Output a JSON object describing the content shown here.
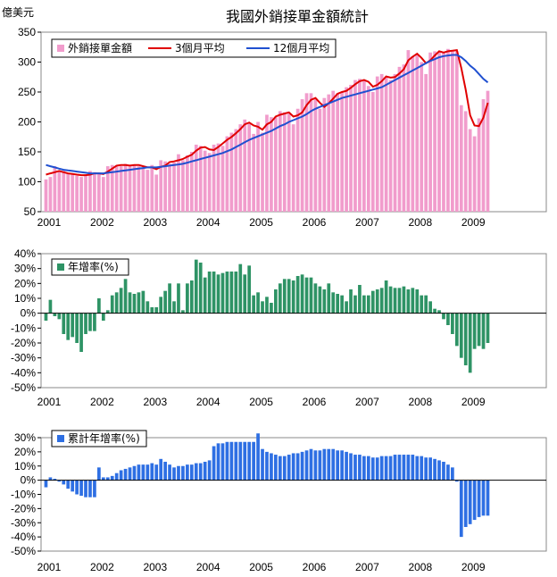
{
  "chart_data": [
    {
      "type": "bar",
      "title": "我國外銷接單金額統計",
      "ylabel": "億美元",
      "ylim": [
        50,
        350
      ],
      "yticks": [
        "50",
        "100",
        "150",
        "200",
        "250",
        "300",
        "350"
      ],
      "xticks": [
        "2001",
        "2002",
        "2003",
        "2004",
        "2005",
        "2006",
        "2007",
        "2008",
        "2009"
      ],
      "legend_position": "top-left",
      "grid": false,
      "series": [
        {
          "name": "外銷接單金額",
          "color": "#f19ccc",
          "type": "bar",
          "values": [
            104,
            108,
            126,
            118,
            118,
            114,
            112,
            110,
            108,
            112,
            118,
            116,
            113,
            108,
            126,
            128,
            128,
            126,
            130,
            126,
            128,
            126,
            124,
            120,
            128,
            112,
            136,
            134,
            130,
            132,
            146,
            136,
            144,
            150,
            162,
            160,
            152,
            148,
            162,
            164,
            160,
            176,
            182,
            188,
            196,
            204,
            198,
            180,
            200,
            182,
            212,
            208,
            208,
            218,
            216,
            214,
            196,
            222,
            238,
            248,
            248,
            240,
            222,
            240,
            246,
            252,
            248,
            250,
            258,
            262,
            270,
            272,
            268,
            260,
            250,
            276,
            280,
            274,
            270,
            280,
            292,
            296,
            320,
            310,
            312,
            300,
            280,
            316,
            318,
            318,
            316,
            322,
            320,
            318,
            228,
            218,
            188,
            176,
            206,
            238,
            252
          ]
        },
        {
          "name": "3個月平均",
          "color": "#e00000",
          "type": "line",
          "values": [
            112,
            114,
            116,
            118,
            116,
            114,
            113,
            112,
            111,
            111,
            112,
            114,
            114,
            113,
            117,
            122,
            127,
            128,
            128,
            127,
            128,
            128,
            126,
            124,
            124,
            121,
            125,
            127,
            133,
            134,
            136,
            138,
            142,
            145,
            152,
            157,
            158,
            154,
            153,
            158,
            164,
            170,
            175,
            181,
            188,
            196,
            199,
            194,
            192,
            187,
            196,
            200,
            209,
            212,
            214,
            216,
            209,
            211,
            216,
            228,
            237,
            240,
            232,
            225,
            231,
            239,
            247,
            250,
            252,
            257,
            263,
            268,
            270,
            267,
            259,
            262,
            268,
            276,
            274,
            275,
            281,
            288,
            303,
            309,
            314,
            307,
            298,
            303,
            311,
            318,
            316,
            318,
            319,
            320,
            290,
            254,
            211,
            194,
            193,
            207,
            232
          ]
        },
        {
          "name": "12個月平均",
          "color": "#2050d0",
          "type": "line",
          "values": [
            128,
            126,
            124,
            122,
            120,
            119,
            118,
            117,
            116,
            115,
            114,
            114,
            114,
            114,
            115,
            116,
            117,
            118,
            119,
            120,
            121,
            122,
            123,
            124,
            124,
            124,
            125,
            126,
            127,
            128,
            129,
            130,
            132,
            134,
            136,
            138,
            140,
            142,
            144,
            146,
            148,
            151,
            154,
            158,
            162,
            166,
            170,
            173,
            176,
            179,
            182,
            185,
            189,
            193,
            196,
            200,
            203,
            206,
            209,
            213,
            218,
            222,
            225,
            228,
            231,
            234,
            237,
            240,
            242,
            244,
            246,
            248,
            250,
            252,
            254,
            256,
            258,
            262,
            266,
            270,
            274,
            278,
            282,
            286,
            290,
            294,
            298,
            302,
            305,
            308,
            310,
            311,
            312,
            312,
            308,
            302,
            294,
            288,
            280,
            272,
            266
          ]
        }
      ]
    },
    {
      "type": "bar",
      "ylim": [
        -50,
        40
      ],
      "yticks": [
        "40%",
        "30%",
        "20%",
        "10%",
        "0%",
        "-10%",
        "-20%",
        "-30%",
        "-40%",
        "-50%"
      ],
      "xticks": [
        "2001",
        "2002",
        "2003",
        "2004",
        "2005",
        "2006",
        "2007",
        "2008",
        "2009"
      ],
      "legend_position": "top-left",
      "grid": false,
      "series": [
        {
          "name": "年增率(%)",
          "color": "#2e9365",
          "type": "bar",
          "values": [
            -5,
            9,
            -2,
            -4,
            -14,
            -18,
            -16,
            -20,
            -26,
            -14,
            -12,
            -12,
            10,
            -5,
            2,
            12,
            14,
            17,
            23,
            14,
            13,
            14,
            15,
            8,
            4,
            4,
            11,
            15,
            20,
            8,
            20,
            2,
            20,
            22,
            36,
            34,
            24,
            28,
            28,
            26,
            27,
            28,
            28,
            28,
            33,
            26,
            32,
            12,
            14,
            8,
            11,
            7,
            16,
            20,
            23,
            23,
            22,
            25,
            26,
            24,
            24,
            20,
            18,
            16,
            20,
            14,
            13,
            12,
            8,
            16,
            12,
            19,
            12,
            12,
            15,
            16,
            17,
            22,
            18,
            17,
            17,
            18,
            16,
            17,
            16,
            12,
            12,
            8,
            3,
            2,
            -4,
            -8,
            -14,
            -22,
            -30,
            -35,
            -40,
            -24,
            -22,
            -24,
            -20
          ]
        }
      ]
    },
    {
      "type": "bar",
      "ylim": [
        -50,
        30
      ],
      "yticks": [
        "30%",
        "20%",
        "10%",
        "0%",
        "-10%",
        "-20%",
        "-30%",
        "-40%",
        "-50%"
      ],
      "xticks": [
        "2001",
        "2002",
        "2003",
        "2004",
        "2005",
        "2006",
        "2007",
        "2008",
        "2009"
      ],
      "legend_position": "top-left",
      "grid": false,
      "series": [
        {
          "name": "累計年增率(%)",
          "color": "#2e6fe3",
          "type": "bar",
          "values": [
            -5,
            2,
            1,
            -1,
            -3,
            -6,
            -8,
            -10,
            -11,
            -12,
            -12,
            -12,
            9,
            2,
            2,
            3,
            5,
            7,
            8,
            9,
            10,
            11,
            11,
            11,
            12,
            11,
            15,
            13,
            11,
            9,
            10,
            10,
            11,
            11,
            12,
            12,
            13,
            14,
            24,
            26,
            26,
            27,
            27,
            27,
            27,
            27,
            27,
            27,
            33,
            22,
            20,
            19,
            18,
            17,
            17,
            18,
            19,
            19,
            20,
            21,
            22,
            21,
            21,
            22,
            22,
            22,
            21,
            21,
            20,
            19,
            18,
            18,
            17,
            17,
            16,
            16,
            17,
            17,
            17,
            18,
            18,
            18,
            18,
            18,
            17,
            17,
            16,
            16,
            15,
            14,
            13,
            11,
            9,
            -1,
            -40,
            -33,
            -31,
            -28,
            -26,
            -25,
            -25
          ]
        }
      ]
    }
  ]
}
